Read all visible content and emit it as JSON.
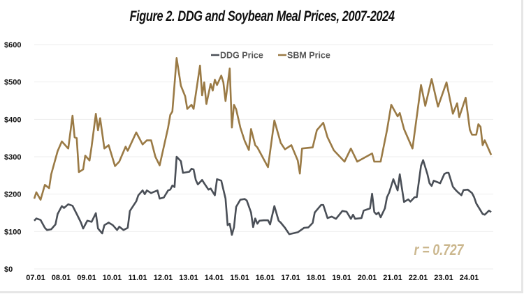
{
  "chart_data": {
    "type": "line",
    "title": "Figure 2. DDG and Soybean Meal Prices, 2007-2024",
    "xlabel": "",
    "ylabel": "",
    "ylim": [
      0,
      600
    ],
    "xlim": [
      "2007-01",
      "2024-12"
    ],
    "y_ticks": [
      "$0",
      "$100",
      "$200",
      "$300",
      "$400",
      "$500",
      "$600"
    ],
    "x_ticks": [
      "07.01",
      "08.01",
      "09.01",
      "10.01",
      "11.01",
      "12.01",
      "13.01",
      "14.01",
      "15.01",
      "16.01",
      "17.01",
      "18.01",
      "19.01",
      "20.01",
      "21.01",
      "22.01",
      "23.01",
      "24.01"
    ],
    "grid": "horizontal",
    "legend_position": "top-center",
    "annotation": "r = 0.727",
    "colors": {
      "DDG Price": "#4a4f57",
      "SBM Price": "#9a7a45",
      "annotation": "#cbb78e",
      "grid": "#eeeeee"
    },
    "series": [
      {
        "name": "DDG Price",
        "points": [
          [
            "2007-01",
            129
          ],
          [
            "2007-02",
            135
          ],
          [
            "2007-04",
            131
          ],
          [
            "2007-06",
            110
          ],
          [
            "2007-07",
            104
          ],
          [
            "2007-09",
            106
          ],
          [
            "2007-11",
            119
          ],
          [
            "2007-12",
            147
          ],
          [
            "2008-02",
            168
          ],
          [
            "2008-03",
            163
          ],
          [
            "2008-05",
            173
          ],
          [
            "2008-07",
            169
          ],
          [
            "2008-09",
            147
          ],
          [
            "2008-11",
            124
          ],
          [
            "2008-12",
            108
          ],
          [
            "2009-02",
            129
          ],
          [
            "2009-04",
            126
          ],
          [
            "2009-06",
            149
          ],
          [
            "2009-07",
            108
          ],
          [
            "2009-09",
            95
          ],
          [
            "2009-10",
            117
          ],
          [
            "2009-12",
            124
          ],
          [
            "2010-02",
            117
          ],
          [
            "2010-04",
            104
          ],
          [
            "2010-05",
            113
          ],
          [
            "2010-07",
            104
          ],
          [
            "2010-09",
            110
          ],
          [
            "2010-10",
            155
          ],
          [
            "2011-01",
            181
          ],
          [
            "2011-02",
            197
          ],
          [
            "2011-04",
            210
          ],
          [
            "2011-05",
            200
          ],
          [
            "2011-06",
            210
          ],
          [
            "2011-08",
            203
          ],
          [
            "2011-11",
            210
          ],
          [
            "2011-12",
            188
          ],
          [
            "2012-02",
            191
          ],
          [
            "2012-04",
            210
          ],
          [
            "2012-05",
            212
          ],
          [
            "2012-06",
            223
          ],
          [
            "2012-07",
            219
          ],
          [
            "2012-08",
            300
          ],
          [
            "2012-10",
            288
          ],
          [
            "2012-11",
            257
          ],
          [
            "2013-02",
            260
          ],
          [
            "2013-03",
            268
          ],
          [
            "2013-04",
            266
          ],
          [
            "2013-05",
            238
          ],
          [
            "2013-06",
            226
          ],
          [
            "2013-08",
            238
          ],
          [
            "2013-09",
            229
          ],
          [
            "2013-11",
            212
          ],
          [
            "2013-12",
            215
          ],
          [
            "2014-02",
            197
          ],
          [
            "2014-03",
            240
          ],
          [
            "2014-05",
            236
          ],
          [
            "2014-07",
            188
          ],
          [
            "2014-08",
            117
          ],
          [
            "2014-09",
            121
          ],
          [
            "2014-10",
            91
          ],
          [
            "2014-11",
            111
          ],
          [
            "2014-12",
            166
          ],
          [
            "2015-02",
            185
          ],
          [
            "2015-04",
            187
          ],
          [
            "2015-05",
            183
          ],
          [
            "2015-07",
            151
          ],
          [
            "2015-08",
            112
          ],
          [
            "2015-09",
            135
          ],
          [
            "2015-10",
            121
          ],
          [
            "2015-11",
            129
          ],
          [
            "2016-01",
            130
          ],
          [
            "2016-03",
            130
          ],
          [
            "2016-04",
            119
          ],
          [
            "2016-06",
            168
          ],
          [
            "2016-08",
            129
          ],
          [
            "2016-09",
            124
          ],
          [
            "2016-11",
            110
          ],
          [
            "2017-01",
            93
          ],
          [
            "2017-05",
            98
          ],
          [
            "2017-08",
            110
          ],
          [
            "2017-10",
            111
          ],
          [
            "2017-12",
            123
          ],
          [
            "2018-01",
            151
          ],
          [
            "2018-04",
            171
          ],
          [
            "2018-05",
            171
          ],
          [
            "2018-07",
            136
          ],
          [
            "2018-09",
            140
          ],
          [
            "2018-11",
            134
          ],
          [
            "2019-02",
            155
          ],
          [
            "2019-04",
            153
          ],
          [
            "2019-06",
            134
          ],
          [
            "2019-07",
            145
          ],
          [
            "2019-08",
            134
          ],
          [
            "2019-11",
            136
          ],
          [
            "2019-12",
            156
          ],
          [
            "2020-03",
            162
          ],
          [
            "2020-04",
            201
          ],
          [
            "2020-05",
            152
          ],
          [
            "2020-06",
            146
          ],
          [
            "2020-07",
            151
          ],
          [
            "2020-08",
            138
          ],
          [
            "2020-10",
            162
          ],
          [
            "2020-11",
            192
          ],
          [
            "2020-12",
            204
          ],
          [
            "2021-02",
            240
          ],
          [
            "2021-04",
            210
          ],
          [
            "2021-05",
            253
          ],
          [
            "2021-07",
            179
          ],
          [
            "2021-09",
            186
          ],
          [
            "2021-10",
            180
          ],
          [
            "2021-12",
            192
          ],
          [
            "2022-01",
            192
          ],
          [
            "2022-03",
            276
          ],
          [
            "2022-04",
            291
          ],
          [
            "2022-06",
            254
          ],
          [
            "2022-07",
            229
          ],
          [
            "2022-08",
            222
          ],
          [
            "2022-09",
            236
          ],
          [
            "2022-12",
            229
          ],
          [
            "2023-02",
            254
          ],
          [
            "2023-03",
            257
          ],
          [
            "2023-04",
            257
          ],
          [
            "2023-06",
            220
          ],
          [
            "2023-07",
            213
          ],
          [
            "2023-08",
            207
          ],
          [
            "2023-10",
            197
          ],
          [
            "2023-11",
            211
          ],
          [
            "2024-01",
            212
          ],
          [
            "2024-03",
            203
          ],
          [
            "2024-04",
            192
          ],
          [
            "2024-05",
            175
          ],
          [
            "2024-06",
            166
          ],
          [
            "2024-08",
            147
          ],
          [
            "2024-09",
            145
          ],
          [
            "2024-11",
            156
          ],
          [
            "2024-12",
            152
          ]
        ]
      },
      {
        "name": "SBM Price",
        "points": [
          [
            "2007-01",
            188
          ],
          [
            "2007-02",
            205
          ],
          [
            "2007-04",
            185
          ],
          [
            "2007-06",
            225
          ],
          [
            "2007-08",
            216
          ],
          [
            "2007-09",
            253
          ],
          [
            "2007-12",
            315
          ],
          [
            "2008-02",
            341
          ],
          [
            "2008-05",
            322
          ],
          [
            "2008-07",
            410
          ],
          [
            "2008-08",
            352
          ],
          [
            "2008-09",
            350
          ],
          [
            "2008-10",
            259
          ],
          [
            "2008-12",
            266
          ],
          [
            "2009-01",
            303
          ],
          [
            "2009-03",
            290
          ],
          [
            "2009-04",
            327
          ],
          [
            "2009-06",
            415
          ],
          [
            "2009-07",
            371
          ],
          [
            "2009-08",
            403
          ],
          [
            "2009-10",
            322
          ],
          [
            "2009-12",
            331
          ],
          [
            "2010-03",
            275
          ],
          [
            "2010-05",
            287
          ],
          [
            "2010-08",
            327
          ],
          [
            "2010-09",
            316
          ],
          [
            "2011-01",
            365
          ],
          [
            "2011-04",
            333
          ],
          [
            "2011-06",
            344
          ],
          [
            "2011-08",
            344
          ],
          [
            "2011-10",
            300
          ],
          [
            "2011-12",
            277
          ],
          [
            "2012-02",
            327
          ],
          [
            "2012-04",
            378
          ],
          [
            "2012-05",
            412
          ],
          [
            "2012-06",
            421
          ],
          [
            "2012-08",
            564
          ],
          [
            "2012-10",
            490
          ],
          [
            "2012-12",
            462
          ],
          [
            "2013-01",
            428
          ],
          [
            "2013-03",
            439
          ],
          [
            "2013-04",
            428
          ],
          [
            "2013-07",
            544
          ],
          [
            "2013-08",
            464
          ],
          [
            "2013-09",
            499
          ],
          [
            "2013-10",
            441
          ],
          [
            "2013-12",
            495
          ],
          [
            "2014-01",
            477
          ],
          [
            "2014-02",
            506
          ],
          [
            "2014-03",
            492
          ],
          [
            "2014-05",
            517
          ],
          [
            "2014-06",
            499
          ],
          [
            "2014-07",
            449
          ],
          [
            "2014-09",
            536
          ],
          [
            "2014-10",
            378
          ],
          [
            "2014-11",
            439
          ],
          [
            "2014-12",
            427
          ],
          [
            "2015-02",
            378
          ],
          [
            "2015-04",
            343
          ],
          [
            "2015-06",
            318
          ],
          [
            "2015-07",
            374
          ],
          [
            "2015-09",
            331
          ],
          [
            "2015-10",
            325
          ],
          [
            "2016-03",
            272
          ],
          [
            "2016-06",
            397
          ],
          [
            "2016-09",
            337
          ],
          [
            "2016-11",
            320
          ],
          [
            "2017-02",
            331
          ],
          [
            "2017-05",
            290
          ],
          [
            "2017-06",
            255
          ],
          [
            "2017-07",
            322
          ],
          [
            "2017-12",
            325
          ],
          [
            "2018-02",
            371
          ],
          [
            "2018-05",
            391
          ],
          [
            "2018-07",
            352
          ],
          [
            "2018-10",
            317
          ],
          [
            "2019-03",
            287
          ],
          [
            "2019-06",
            322
          ],
          [
            "2019-09",
            287
          ],
          [
            "2020-04",
            309
          ],
          [
            "2020-05",
            287
          ],
          [
            "2020-08",
            287
          ],
          [
            "2020-11",
            371
          ],
          [
            "2021-01",
            439
          ],
          [
            "2021-04",
            408
          ],
          [
            "2021-05",
            417
          ],
          [
            "2021-07",
            374
          ],
          [
            "2021-11",
            322
          ],
          [
            "2022-03",
            492
          ],
          [
            "2022-05",
            436
          ],
          [
            "2022-08",
            508
          ],
          [
            "2022-11",
            434
          ],
          [
            "2023-03",
            499
          ],
          [
            "2023-06",
            415
          ],
          [
            "2023-08",
            443
          ],
          [
            "2023-09",
            406
          ],
          [
            "2023-12",
            458
          ],
          [
            "2024-02",
            372
          ],
          [
            "2024-03",
            359
          ],
          [
            "2024-05",
            359
          ],
          [
            "2024-06",
            387
          ],
          [
            "2024-07",
            380
          ],
          [
            "2024-08",
            331
          ],
          [
            "2024-09",
            344
          ],
          [
            "2024-12",
            305
          ]
        ]
      }
    ]
  }
}
